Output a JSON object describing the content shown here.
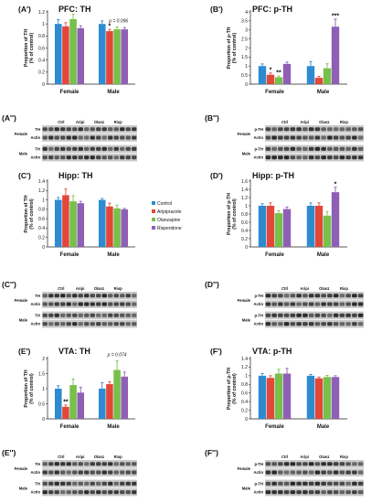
{
  "groups": [
    "Female",
    "Male"
  ],
  "lanes": [
    "Ctrl",
    "Aripi",
    "Olanz",
    "Risp"
  ],
  "legend": [
    {
      "label": "Control",
      "color": "#2e8bd0"
    },
    {
      "label": "Aripiprazole",
      "color": "#e2473a"
    },
    {
      "label": "Olanzapine",
      "color": "#77c04a"
    },
    {
      "label": "Risperidone",
      "color": "#8f5fb5"
    }
  ],
  "ylabel_line1": "Proportion of",
  "ylabel_line2": "(% of control)",
  "chart_data": [
    {
      "type": "bar",
      "panel": "(A')",
      "title": "PFC: TH",
      "ylabel": "Proportion of TH (% of control)",
      "ylim": [
        0,
        1.2
      ],
      "ticks": [
        0,
        0.2,
        0.4,
        0.6,
        0.8,
        1,
        1.2
      ],
      "categories": [
        "Female",
        "Male"
      ],
      "series": [
        {
          "name": "Control",
          "values": [
            1.0,
            1.0
          ],
          "err": [
            0.07,
            0.05
          ]
        },
        {
          "name": "Aripiprazole",
          "values": [
            0.96,
            0.88
          ],
          "err": [
            0.06,
            0.03
          ]
        },
        {
          "name": "Olanzapine",
          "values": [
            1.08,
            0.91
          ],
          "err": [
            0.08,
            0.04
          ]
        },
        {
          "name": "Risperidone",
          "values": [
            0.93,
            0.91
          ],
          "err": [
            0.04,
            0.03
          ]
        }
      ],
      "annotations": [
        {
          "text": "*",
          "group": 1,
          "bar": 1,
          "size": "sig"
        },
        {
          "text": "p = 0.096",
          "group": 1,
          "bar": 2.2,
          "size": "p"
        }
      ]
    },
    {
      "type": "bar",
      "panel": "(B')",
      "title": "PFC: p-TH",
      "ylabel": "Proportion of p-TH (% of control)",
      "ylim": [
        0,
        4
      ],
      "ticks": [
        0,
        0.5,
        1,
        1.5,
        2,
        2.5,
        3,
        3.5,
        4
      ],
      "categories": [
        "Female",
        "Male"
      ],
      "series": [
        {
          "name": "Control",
          "values": [
            1.0,
            1.0
          ],
          "err": [
            0.12,
            0.25
          ]
        },
        {
          "name": "Aripiprazole",
          "values": [
            0.52,
            0.35
          ],
          "err": [
            0.1,
            0.08
          ]
        },
        {
          "name": "Olanzapine",
          "values": [
            0.38,
            0.88
          ],
          "err": [
            0.07,
            0.25
          ]
        },
        {
          "name": "Risperidone",
          "values": [
            1.12,
            3.18
          ],
          "err": [
            0.1,
            0.42
          ]
        }
      ],
      "annotations": [
        {
          "text": "*",
          "group": 0,
          "bar": 1,
          "size": "sig"
        },
        {
          "text": "**",
          "group": 0,
          "bar": 2,
          "size": "sig"
        },
        {
          "text": "***",
          "group": 1,
          "bar": 3,
          "size": "sig"
        }
      ]
    },
    {
      "type": "bar",
      "panel": "(C')",
      "title": "Hipp: TH",
      "ylabel": "Proportion of TH (% of control)",
      "ylim": [
        0,
        1.4
      ],
      "ticks": [
        0,
        0.2,
        0.4,
        0.6,
        0.8,
        1,
        1.2,
        1.4
      ],
      "categories": [
        "Female",
        "Male"
      ],
      "series": [
        {
          "name": "Control",
          "values": [
            1.0,
            1.0
          ],
          "err": [
            0.05,
            0.03
          ]
        },
        {
          "name": "Aripiprazole",
          "values": [
            1.1,
            0.86
          ],
          "err": [
            0.13,
            0.07
          ]
        },
        {
          "name": "Olanzapine",
          "values": [
            0.97,
            0.82
          ],
          "err": [
            0.12,
            0.07
          ]
        },
        {
          "name": "Risperidone",
          "values": [
            0.93,
            0.8
          ],
          "err": [
            0.04,
            0.02
          ]
        }
      ],
      "annotations": []
    },
    {
      "type": "bar",
      "panel": "(D')",
      "title": "Hipp: p-TH",
      "ylabel": "Proportion of p-TH (% of control)",
      "ylim": [
        0,
        1.6
      ],
      "ticks": [
        0,
        0.2,
        0.4,
        0.6,
        0.8,
        1,
        1.2,
        1.4,
        1.6
      ],
      "categories": [
        "Female",
        "Male"
      ],
      "series": [
        {
          "name": "Control",
          "values": [
            1.0,
            1.0
          ],
          "err": [
            0.05,
            0.07
          ]
        },
        {
          "name": "Aripiprazole",
          "values": [
            1.0,
            1.0
          ],
          "err": [
            0.07,
            0.07
          ]
        },
        {
          "name": "Olanzapine",
          "values": [
            0.82,
            0.76
          ],
          "err": [
            0.06,
            0.1
          ]
        },
        {
          "name": "Risperidone",
          "values": [
            0.92,
            1.33
          ],
          "err": [
            0.05,
            0.12
          ]
        }
      ],
      "annotations": [
        {
          "text": "*",
          "group": 1,
          "bar": 3,
          "size": "sig"
        }
      ]
    },
    {
      "type": "bar",
      "panel": "(E')",
      "title": "VTA: TH",
      "ylabel": "Proportion of TH (% of control)",
      "ylim": [
        0,
        2
      ],
      "ticks": [
        0,
        0.5,
        1,
        1.5,
        2
      ],
      "categories": [
        "Female",
        "Male"
      ],
      "series": [
        {
          "name": "Control",
          "values": [
            1.0,
            1.0
          ],
          "err": [
            0.1,
            0.2
          ]
        },
        {
          "name": "Aripiprazole",
          "values": [
            0.4,
            1.15
          ],
          "err": [
            0.06,
            0.08
          ]
        },
        {
          "name": "Olanzapine",
          "values": [
            1.12,
            1.62
          ],
          "err": [
            0.2,
            0.3
          ]
        },
        {
          "name": "Risperidone",
          "values": [
            0.87,
            1.4
          ],
          "err": [
            0.18,
            0.15
          ]
        }
      ],
      "annotations": [
        {
          "text": "**",
          "group": 0,
          "bar": 1,
          "size": "sig"
        },
        {
          "text": "p = 0.074",
          "group": 1,
          "bar": 2,
          "size": "p"
        }
      ]
    },
    {
      "type": "bar",
      "panel": "(F')",
      "title": "VTA: p-TH",
      "ylabel": "Proportion of p-TH (% of control)",
      "ylim": [
        0,
        1.4
      ],
      "ticks": [
        0,
        0.2,
        0.4,
        0.6,
        0.8,
        1,
        1.2,
        1.4
      ],
      "categories": [
        "Female",
        "Male"
      ],
      "series": [
        {
          "name": "Control",
          "values": [
            1.0,
            1.0
          ],
          "err": [
            0.05,
            0.03
          ]
        },
        {
          "name": "Aripiprazole",
          "values": [
            0.95,
            0.94
          ],
          "err": [
            0.05,
            0.03
          ]
        },
        {
          "name": "Olanzapine",
          "values": [
            1.05,
            0.97
          ],
          "err": [
            0.1,
            0.04
          ]
        },
        {
          "name": "Risperidone",
          "values": [
            1.05,
            0.97
          ],
          "err": [
            0.12,
            0.03
          ]
        }
      ],
      "annotations": []
    }
  ],
  "blots": [
    {
      "panel": "(A'')",
      "sections": [
        {
          "label": "Female",
          "rows": [
            "TH",
            "Actin"
          ]
        },
        {
          "label": "Male",
          "rows": [
            "TH",
            "Actin"
          ]
        }
      ]
    },
    {
      "panel": "(B'')",
      "sections": [
        {
          "label": "Female",
          "rows": [
            "p-TH",
            "Actin"
          ]
        },
        {
          "label": "Male",
          "rows": [
            "p-TH",
            "Actin"
          ]
        }
      ]
    },
    {
      "panel": "(C'')",
      "sections": [
        {
          "label": "Female",
          "rows": [
            "TH",
            "Actin"
          ]
        },
        {
          "label": "Male",
          "rows": [
            "TH",
            "Actin"
          ]
        }
      ]
    },
    {
      "panel": "(D'')",
      "sections": [
        {
          "label": "Female",
          "rows": [
            "p-TH",
            "Actin"
          ]
        },
        {
          "label": "Male",
          "rows": [
            "p-TH",
            "Actin"
          ]
        }
      ]
    },
    {
      "panel": "(E'')",
      "sections": [
        {
          "label": "Female",
          "rows": [
            "TH",
            "Actin"
          ]
        },
        {
          "label": "Male",
          "rows": [
            "TH",
            "Actin"
          ]
        }
      ]
    },
    {
      "panel": "(F'')",
      "sections": [
        {
          "label": "Female",
          "rows": [
            "p-TH",
            "Actin"
          ]
        },
        {
          "label": "Male",
          "rows": [
            "p-TH",
            "Actin"
          ]
        }
      ]
    }
  ]
}
